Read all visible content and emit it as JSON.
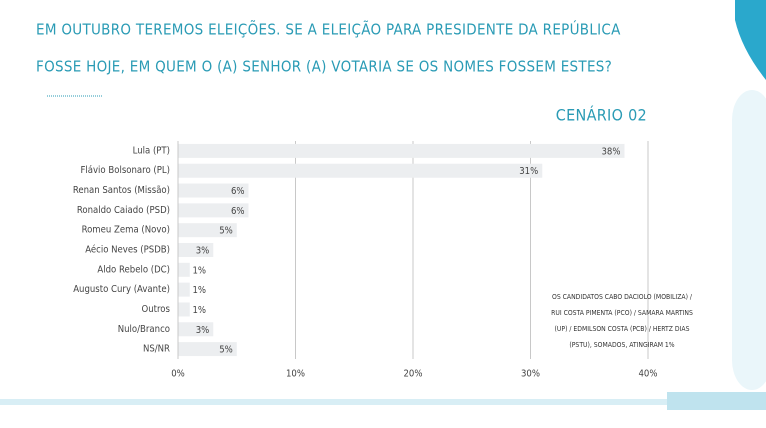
{
  "chart_data": {
    "type": "bar",
    "orientation": "horizontal",
    "title": [
      "EM OUTUBRO TEREMOS ELEIÇÕES. SE A ELEIÇÃO PARA PRESIDENTE DA REPÚBLICA",
      "FOSSE HOJE, EM QUEM O (A) SENHOR (A) VOTARIA SE OS NOMES FOSSEM ESTES?"
    ],
    "subtitle": "CENÁRIO 02",
    "categories": [
      "Lula (PT)",
      "Flávio Bolsonaro (PL)",
      "Renan Santos (Missão)",
      "Ronaldo Caiado (PSD)",
      "Romeu Zema (Novo)",
      "Aécio Neves (PSDB)",
      "Aldo Rebelo (DC)",
      "Augusto Cury (Avante)",
      "Outros",
      "Nulo/Branco",
      "NS/NR"
    ],
    "values": [
      38,
      31,
      6,
      6,
      5,
      3,
      1,
      1,
      1,
      3,
      5
    ],
    "value_labels": [
      "38%",
      "31%",
      "6%",
      "6%",
      "5%",
      "3%",
      "1%",
      "1%",
      "1%",
      "3%",
      "5%"
    ],
    "color": "#eceef0",
    "xlim": [
      0,
      40
    ],
    "xticks": [
      {
        "value": 0,
        "label": "0%"
      },
      {
        "value": 10,
        "label": "10%"
      },
      {
        "value": 20,
        "label": "20%"
      },
      {
        "value": 30,
        "label": "30%"
      },
      {
        "value": 40,
        "label": "40%"
      }
    ],
    "grid": true,
    "annotation": [
      "OS CANDIDATOS CABO DACIOLO (MOBILIZA) /",
      "RUI COSTA PIMENTA (PCO) / SAMARA MARTINS",
      "(UP) / EDMILSON COSTA (PCB) / HERTZ DIAS",
      "(PSTU), SOMADOS, ATINGIRAM 1%"
    ]
  }
}
